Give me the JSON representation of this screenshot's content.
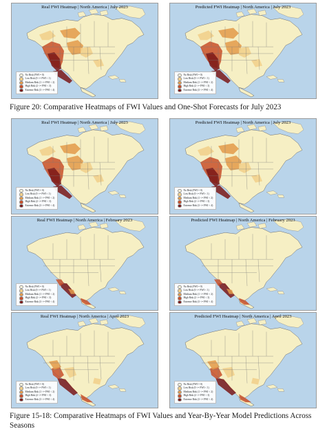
{
  "colors": {
    "ocean": "#b9d4ea",
    "land": "#f6efc4",
    "low": "#f1cf8a",
    "medium": "#e39a4a",
    "high": "#c8502a",
    "extreme": "#7a1717"
  },
  "legend": [
    {
      "label": "No Risk (FWI = 0)",
      "color": "#f7f3dc"
    },
    {
      "label": "Low Risk (0 <= FWI < 1)",
      "color": "#f1cf8a"
    },
    {
      "label": "Medium Risk (1 <= FWI < 2)",
      "color": "#e39a4a"
    },
    {
      "label": "High Risk (2 <= FWI < 3)",
      "color": "#c8502a"
    },
    {
      "label": "Extreme Risk (3 <= FWI < 4)",
      "color": "#7a1717"
    }
  ],
  "captions": {
    "figure20": "Figure 20: Comparative Heatmaps of FWI Values and One-Shot Forecasts for July 2023",
    "figure15_18": "Figure 15-18: Comparative Heatmaps of FWI Values and Year-By-Year Model Predictions Across Seasons"
  },
  "maps": [
    {
      "title": "Real FWI Heatmap | North America | July 2023",
      "season": "july",
      "intensity": "high"
    },
    {
      "title": "Predicted FWI Heatmap | North America | July 2023",
      "season": "july",
      "intensity": "high"
    },
    {
      "title": "Real FWI Heatmap | North America | July 2023",
      "season": "july",
      "intensity": "high"
    },
    {
      "title": "Predicted FWI Heatmap | North America | July 2023",
      "season": "july",
      "intensity": "high"
    },
    {
      "title": "Real FWI Heatmap | North America | February 2023",
      "season": "february",
      "intensity": "low"
    },
    {
      "title": "Predicted FWI Heatmap | North America | February 2023",
      "season": "february",
      "intensity": "low"
    },
    {
      "title": "Real FWI Heatmap | North America | April 2023",
      "season": "april",
      "intensity": "medium"
    },
    {
      "title": "Predicted FWI Heatmap | North America | April 2023",
      "season": "april",
      "intensity": "medium"
    }
  ]
}
